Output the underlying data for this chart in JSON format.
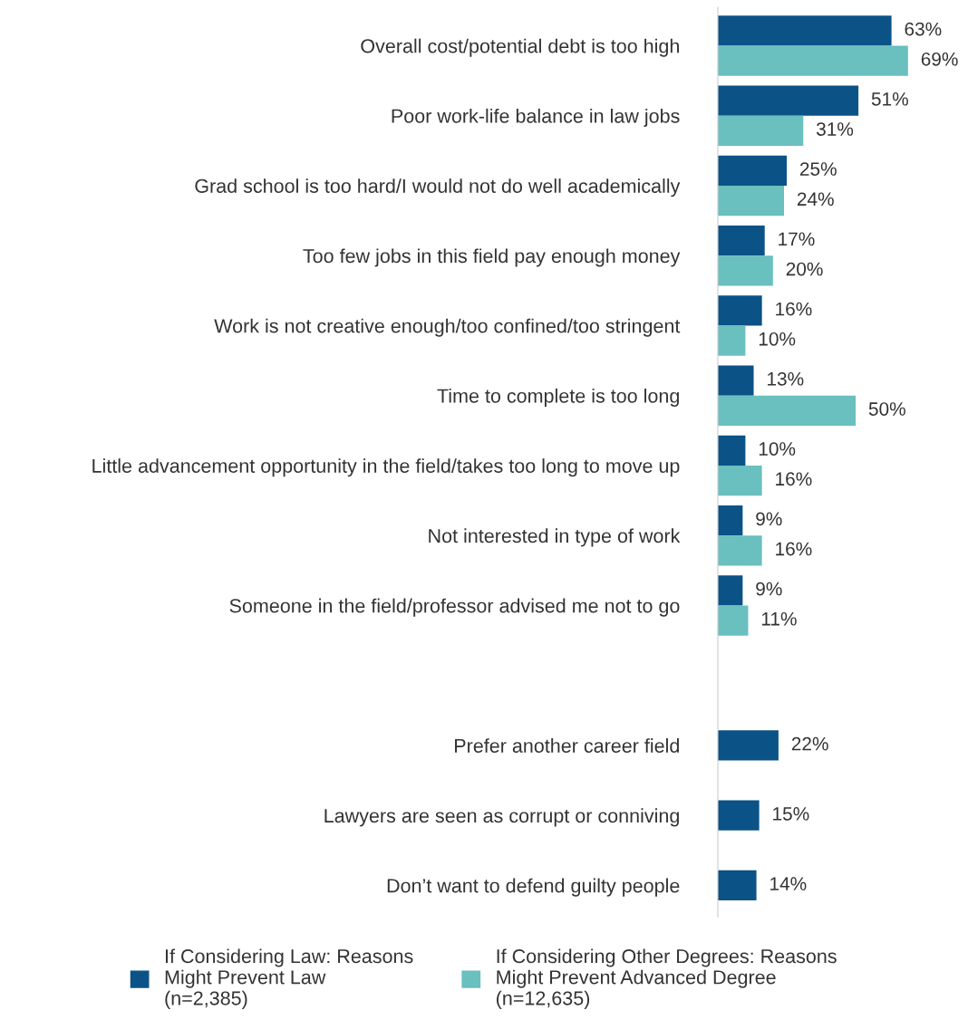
{
  "chart_data": {
    "type": "bar",
    "orientation": "horizontal",
    "legend": "bottom",
    "grid": false,
    "categories": [
      "Overall cost/potential debt is too high",
      "Poor work-life balance in law jobs",
      "Grad school is too hard/I would not do well academically",
      "Too few jobs in this field pay enough money",
      "Work is not creative enough/too confined/too stringent",
      "Time to complete is too long",
      "Little advancement opportunity in the field/takes too long to move up",
      "Not interested in type of work",
      "Someone in the field/professor advised me not to go",
      null,
      "Prefer another career field",
      "Lawyers are seen as corrupt or conniving",
      "Don’t want to defend guilty people"
    ],
    "series": [
      {
        "name": "If Considering Law: Reasons\nMight Prevent Law\n(n=2,385)",
        "color": "#0b5287",
        "values": [
          63,
          51,
          25,
          17,
          16,
          13,
          10,
          9,
          9,
          null,
          22,
          15,
          14
        ],
        "value_labels": [
          "63%",
          "51%",
          "25%",
          "17%",
          "16%",
          "13%",
          "10%",
          "9%",
          "9%",
          null,
          "22%",
          "15%",
          "14%"
        ]
      },
      {
        "name": "If Considering Other Degrees: Reasons\nMight Prevent Advanced Degree\n(n=12,635)",
        "color": "#6abfbf",
        "values": [
          69,
          31,
          24,
          20,
          10,
          50,
          16,
          16,
          11,
          null,
          null,
          null,
          null
        ],
        "value_labels": [
          "69%",
          "31%",
          "24%",
          "20%",
          "10%",
          "50%",
          "16%",
          "16%",
          "11%",
          null,
          null,
          null,
          null
        ]
      }
    ]
  }
}
